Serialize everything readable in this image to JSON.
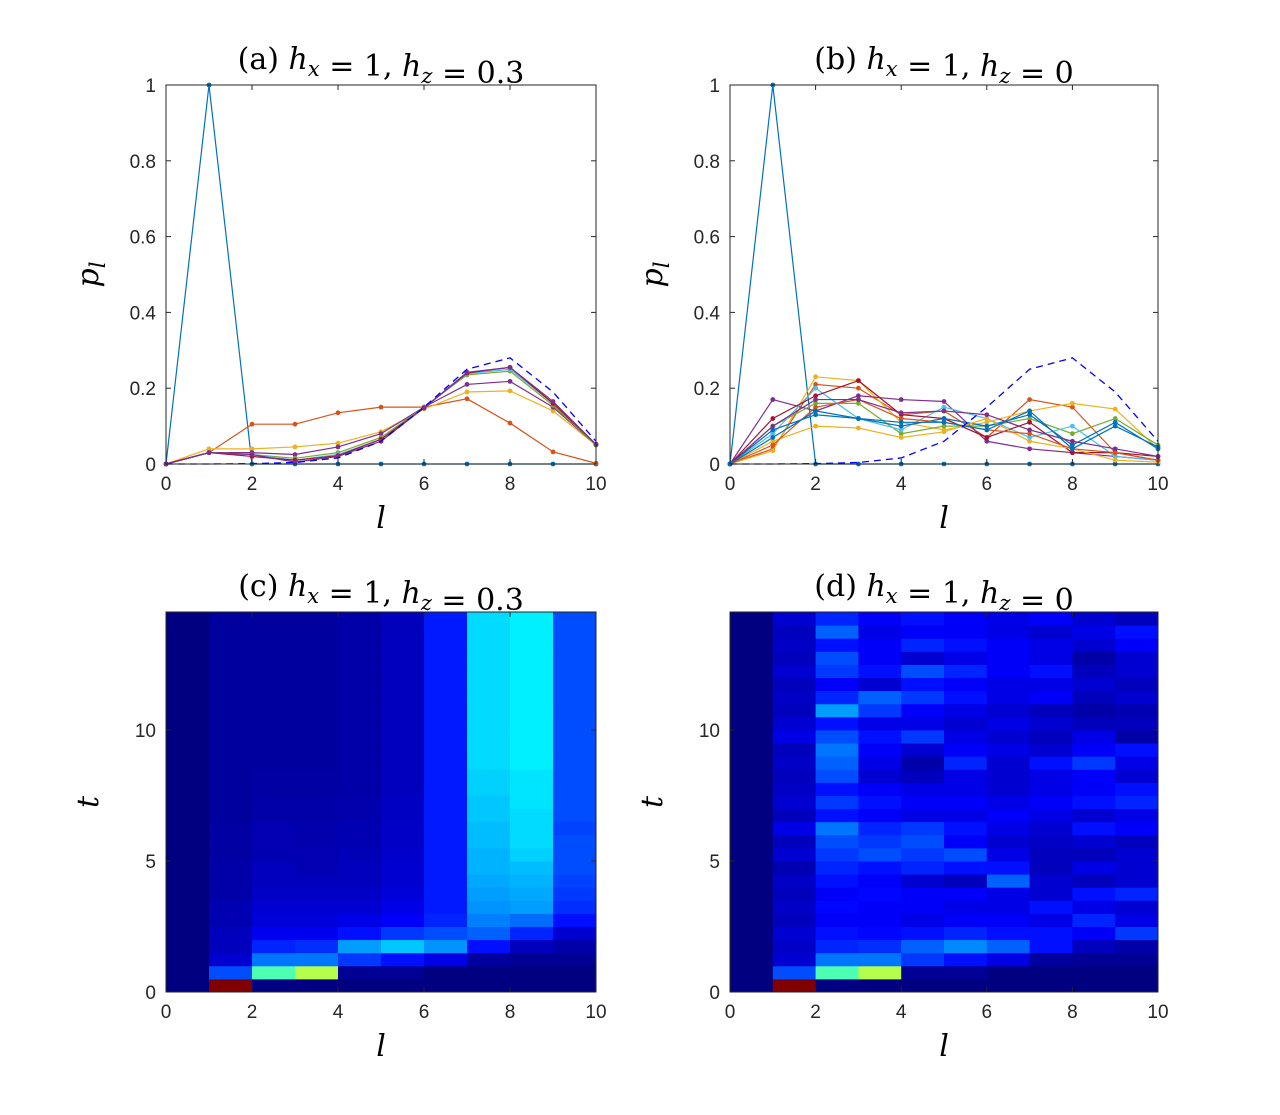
{
  "chart_data": [
    {
      "id": "a",
      "type": "line",
      "title": "(a) h_x = 1, h_z = 0.3",
      "title_parts": {
        "prefix": "(a) ",
        "a": "h",
        "a_sub": "x",
        "mid": " = 1, ",
        "b": "h",
        "b_sub": "z",
        "suffix": " = 0.3"
      },
      "xlabel": "l",
      "ylabel": "p_l",
      "ylabel_parts": {
        "base": "p",
        "sub": "l"
      },
      "xlim": [
        0,
        10
      ],
      "ylim": [
        0,
        1
      ],
      "xticks": [
        "0",
        "2",
        "4",
        "6",
        "8",
        "10"
      ],
      "yticks": [
        "0",
        "0.2",
        "0.4",
        "0.6",
        "0.8",
        "1"
      ],
      "x": [
        0,
        1,
        2,
        3,
        4,
        5,
        6,
        7,
        8,
        9,
        10
      ],
      "dashed_reference": {
        "color": "#0000ff",
        "values": [
          0,
          0,
          0.001,
          0.004,
          0.016,
          0.06,
          0.15,
          0.25,
          0.28,
          0.19,
          0.06
        ]
      },
      "series": [
        {
          "color": "#0072bd",
          "values": [
            0,
            1,
            0,
            0,
            0,
            0,
            0,
            0,
            0,
            0,
            0
          ]
        },
        {
          "color": "#d95319",
          "values": [
            0,
            0.03,
            0.105,
            0.105,
            0.135,
            0.15,
            0.15,
            0.172,
            0.108,
            0.032,
            0.002
          ]
        },
        {
          "color": "#edb120",
          "values": [
            0,
            0.04,
            0.04,
            0.045,
            0.055,
            0.085,
            0.145,
            0.19,
            0.193,
            0.14,
            0.05
          ]
        },
        {
          "color": "#7e2f8e",
          "values": [
            0,
            0.03,
            0.03,
            0.025,
            0.045,
            0.08,
            0.15,
            0.21,
            0.218,
            0.15,
            0.05
          ]
        },
        {
          "color": "#77ac30",
          "values": [
            0,
            0.03,
            0.025,
            0.015,
            0.03,
            0.07,
            0.15,
            0.235,
            0.245,
            0.155,
            0.05
          ]
        },
        {
          "color": "#4dbeee",
          "values": [
            0,
            0.03,
            0.025,
            0.01,
            0.025,
            0.065,
            0.148,
            0.238,
            0.25,
            0.16,
            0.052
          ]
        },
        {
          "color": "#a2142f",
          "values": [
            0,
            0.03,
            0.02,
            0.01,
            0.022,
            0.065,
            0.148,
            0.24,
            0.255,
            0.16,
            0.052
          ]
        },
        {
          "color": "#7e2f8e",
          "values": [
            0,
            0.03,
            0.025,
            0.005,
            0.02,
            0.06,
            0.148,
            0.242,
            0.255,
            0.165,
            0.052
          ]
        }
      ]
    },
    {
      "id": "b",
      "type": "line",
      "title": "(b) h_x = 1, h_z = 0",
      "title_parts": {
        "prefix": "(b) ",
        "a": "h",
        "a_sub": "x",
        "mid": " = 1, ",
        "b": "h",
        "b_sub": "z",
        "suffix": " = 0"
      },
      "xlabel": "l",
      "ylabel": "p_l",
      "ylabel_parts": {
        "base": "p",
        "sub": "l"
      },
      "xlim": [
        0,
        10
      ],
      "ylim": [
        0,
        1
      ],
      "xticks": [
        "0",
        "2",
        "4",
        "6",
        "8",
        "10"
      ],
      "yticks": [
        "0",
        "0.2",
        "0.4",
        "0.6",
        "0.8",
        "1"
      ],
      "x": [
        0,
        1,
        2,
        3,
        4,
        5,
        6,
        7,
        8,
        9,
        10
      ],
      "dashed_reference": {
        "color": "#0000ff",
        "values": [
          0,
          0,
          0.001,
          0.004,
          0.016,
          0.06,
          0.15,
          0.25,
          0.28,
          0.19,
          0.06
        ]
      },
      "series": [
        {
          "color": "#0072bd",
          "values": [
            0,
            1,
            0,
            0,
            0,
            0,
            0,
            0,
            0,
            0,
            0
          ]
        },
        {
          "color": "#d95319",
          "values": [
            0,
            0.04,
            0.21,
            0.2,
            0.13,
            0.14,
            0.07,
            0.17,
            0.15,
            0.03,
            0.01
          ]
        },
        {
          "color": "#edb120",
          "values": [
            0,
            0.035,
            0.23,
            0.22,
            0.11,
            0.09,
            0.11,
            0.14,
            0.16,
            0.145,
            0.04
          ]
        },
        {
          "color": "#7e2f8e",
          "values": [
            0,
            0.17,
            0.14,
            0.18,
            0.17,
            0.165,
            0.06,
            0.04,
            0.03,
            0.02,
            0.01
          ]
        },
        {
          "color": "#77ac30",
          "values": [
            0,
            0.1,
            0.16,
            0.16,
            0.08,
            0.1,
            0.1,
            0.12,
            0.08,
            0.12,
            0.05
          ]
        },
        {
          "color": "#4dbeee",
          "values": [
            0,
            0.08,
            0.2,
            0.12,
            0.09,
            0.15,
            0.12,
            0.07,
            0.1,
            0.02,
            0.01
          ]
        },
        {
          "color": "#a2142f",
          "values": [
            0,
            0.12,
            0.18,
            0.22,
            0.13,
            0.12,
            0.07,
            0.11,
            0.03,
            0.03,
            0.02
          ]
        },
        {
          "color": "#0072bd",
          "values": [
            0,
            0.09,
            0.13,
            0.12,
            0.1,
            0.12,
            0.1,
            0.13,
            0.05,
            0.11,
            0.04
          ]
        },
        {
          "color": "#edb120",
          "values": [
            0,
            0.06,
            0.1,
            0.095,
            0.07,
            0.085,
            0.12,
            0.06,
            0.04,
            0.01,
            0.005
          ]
        },
        {
          "color": "#d95319",
          "values": [
            0,
            0.05,
            0.15,
            0.17,
            0.12,
            0.11,
            0.09,
            0.08,
            0.04,
            0.03,
            0.01
          ]
        },
        {
          "color": "#7e2f8e",
          "values": [
            0,
            0.1,
            0.17,
            0.17,
            0.135,
            0.14,
            0.13,
            0.09,
            0.06,
            0.04,
            0.02
          ]
        },
        {
          "color": "#0072bd",
          "values": [
            0,
            0.07,
            0.14,
            0.12,
            0.11,
            0.11,
            0.09,
            0.14,
            0.04,
            0.1,
            0.045
          ]
        }
      ]
    },
    {
      "id": "c",
      "type": "heatmap",
      "title": "(c) h_x = 1, h_z = 0.3",
      "title_parts": {
        "prefix": "(c) ",
        "a": "h",
        "a_sub": "x",
        "mid": " = 1, ",
        "b": "h",
        "b_sub": "z",
        "suffix": " = 0.3"
      },
      "xlabel": "l",
      "ylabel": "t",
      "xlim": [
        0,
        10
      ],
      "ylim": [
        0,
        14.5
      ],
      "xticks": [
        "0",
        "2",
        "4",
        "6",
        "8",
        "10"
      ],
      "yticks": [
        "0",
        "5",
        "10"
      ],
      "colormap": "jet",
      "value_range": [
        0,
        1
      ],
      "t_step": 0.5,
      "rows": [
        [
          0,
          1,
          0,
          0,
          0,
          0,
          0,
          0,
          0,
          0
        ],
        [
          0,
          0.2,
          0.45,
          0.55,
          0.02,
          0.02,
          0,
          0,
          0,
          0
        ],
        [
          0,
          0.08,
          0.24,
          0.24,
          0.18,
          0.14,
          0.1,
          0.03,
          0.02,
          0.02
        ],
        [
          0,
          0.06,
          0.16,
          0.17,
          0.28,
          0.32,
          0.27,
          0.14,
          0.06,
          0.04
        ],
        [
          0,
          0.06,
          0.11,
          0.11,
          0.14,
          0.18,
          0.2,
          0.22,
          0.16,
          0.08
        ],
        [
          0,
          0.05,
          0.09,
          0.09,
          0.1,
          0.12,
          0.16,
          0.25,
          0.23,
          0.14
        ],
        [
          0,
          0.05,
          0.08,
          0.08,
          0.08,
          0.1,
          0.15,
          0.27,
          0.28,
          0.17
        ],
        [
          0,
          0.04,
          0.07,
          0.07,
          0.07,
          0.09,
          0.15,
          0.28,
          0.29,
          0.18
        ],
        [
          0,
          0.04,
          0.06,
          0.06,
          0.06,
          0.08,
          0.15,
          0.29,
          0.3,
          0.19
        ],
        [
          0,
          0.04,
          0.06,
          0.05,
          0.06,
          0.08,
          0.15,
          0.3,
          0.31,
          0.2
        ],
        [
          0,
          0.035,
          0.05,
          0.05,
          0.055,
          0.075,
          0.15,
          0.3,
          0.33,
          0.2
        ],
        [
          0,
          0.035,
          0.05,
          0.045,
          0.05,
          0.07,
          0.15,
          0.31,
          0.34,
          0.2
        ],
        [
          0,
          0.035,
          0.05,
          0.045,
          0.05,
          0.07,
          0.15,
          0.31,
          0.34,
          0.19
        ],
        [
          0,
          0.03,
          0.04,
          0.04,
          0.045,
          0.065,
          0.15,
          0.32,
          0.34,
          0.2
        ],
        [
          0,
          0.03,
          0.04,
          0.04,
          0.045,
          0.065,
          0.15,
          0.32,
          0.35,
          0.2
        ],
        [
          0,
          0.03,
          0.035,
          0.035,
          0.04,
          0.06,
          0.15,
          0.33,
          0.35,
          0.2
        ],
        [
          0,
          0.03,
          0.035,
          0.035,
          0.04,
          0.06,
          0.15,
          0.33,
          0.35,
          0.2
        ],
        [
          0,
          0.03,
          0.03,
          0.03,
          0.04,
          0.06,
          0.15,
          0.34,
          0.36,
          0.2
        ],
        [
          0,
          0.03,
          0.03,
          0.03,
          0.04,
          0.06,
          0.15,
          0.34,
          0.36,
          0.2
        ],
        [
          0,
          0.03,
          0.03,
          0.03,
          0.04,
          0.06,
          0.15,
          0.34,
          0.36,
          0.2
        ],
        [
          0,
          0.03,
          0.03,
          0.03,
          0.04,
          0.06,
          0.15,
          0.34,
          0.36,
          0.2
        ],
        [
          0,
          0.03,
          0.03,
          0.03,
          0.04,
          0.06,
          0.15,
          0.34,
          0.36,
          0.2
        ],
        [
          0,
          0.03,
          0.03,
          0.03,
          0.04,
          0.06,
          0.15,
          0.34,
          0.36,
          0.2
        ],
        [
          0,
          0.03,
          0.03,
          0.03,
          0.04,
          0.06,
          0.15,
          0.34,
          0.36,
          0.2
        ],
        [
          0,
          0.03,
          0.03,
          0.03,
          0.04,
          0.06,
          0.15,
          0.34,
          0.36,
          0.2
        ],
        [
          0,
          0.03,
          0.03,
          0.03,
          0.04,
          0.06,
          0.15,
          0.34,
          0.36,
          0.2
        ],
        [
          0,
          0.03,
          0.03,
          0.03,
          0.04,
          0.06,
          0.15,
          0.34,
          0.36,
          0.2
        ],
        [
          0,
          0.03,
          0.03,
          0.03,
          0.04,
          0.06,
          0.15,
          0.34,
          0.36,
          0.2
        ],
        [
          0,
          0.03,
          0.03,
          0.03,
          0.04,
          0.06,
          0.15,
          0.34,
          0.36,
          0.2
        ]
      ]
    },
    {
      "id": "d",
      "type": "heatmap",
      "title": "(d) h_x = 1, h_z = 0",
      "title_parts": {
        "prefix": "(d) ",
        "a": "h",
        "a_sub": "x",
        "mid": " = 1, ",
        "b": "h",
        "b_sub": "z",
        "suffix": " = 0"
      },
      "xlabel": "l",
      "ylabel": "t",
      "xlim": [
        0,
        10
      ],
      "ylim": [
        0,
        14.5
      ],
      "xticks": [
        "0",
        "2",
        "4",
        "6",
        "8",
        "10"
      ],
      "yticks": [
        "0",
        "5",
        "10"
      ],
      "colormap": "jet",
      "value_range": [
        0,
        1
      ],
      "t_step": 0.5,
      "rows": [
        [
          0,
          1,
          0,
          0,
          0,
          0,
          0,
          0,
          0,
          0
        ],
        [
          0,
          0.2,
          0.45,
          0.55,
          0.02,
          0.02,
          0,
          0,
          0,
          0
        ],
        [
          0,
          0.08,
          0.24,
          0.24,
          0.18,
          0.14,
          0.1,
          0.03,
          0.02,
          0.02
        ],
        [
          0,
          0.07,
          0.16,
          0.17,
          0.22,
          0.26,
          0.22,
          0.14,
          0.06,
          0.04
        ],
        [
          0,
          0.08,
          0.14,
          0.13,
          0.14,
          0.16,
          0.14,
          0.14,
          0.12,
          0.18
        ],
        [
          0,
          0.06,
          0.12,
          0.12,
          0.1,
          0.12,
          0.12,
          0.1,
          0.16,
          0.1
        ],
        [
          0,
          0.07,
          0.13,
          0.12,
          0.12,
          0.1,
          0.1,
          0.14,
          0.1,
          0.08
        ],
        [
          0,
          0.06,
          0.12,
          0.13,
          0.12,
          0.12,
          0.1,
          0.08,
          0.14,
          0.16
        ],
        [
          0,
          0.07,
          0.14,
          0.12,
          0.08,
          0.06,
          0.22,
          0.08,
          0.06,
          0.08
        ],
        [
          0,
          0.05,
          0.16,
          0.14,
          0.16,
          0.14,
          0.14,
          0.06,
          0.1,
          0.08
        ],
        [
          0,
          0.08,
          0.18,
          0.2,
          0.18,
          0.2,
          0.1,
          0.06,
          0.06,
          0.08
        ],
        [
          0,
          0.06,
          0.2,
          0.18,
          0.2,
          0.12,
          0.08,
          0.07,
          0.08,
          0.06
        ],
        [
          0,
          0.1,
          0.24,
          0.16,
          0.18,
          0.14,
          0.1,
          0.08,
          0.14,
          0.12
        ],
        [
          0,
          0.06,
          0.14,
          0.12,
          0.1,
          0.1,
          0.12,
          0.1,
          0.08,
          0.1
        ],
        [
          0,
          0.08,
          0.18,
          0.14,
          0.12,
          0.12,
          0.1,
          0.12,
          0.14,
          0.16
        ],
        [
          0,
          0.07,
          0.14,
          0.12,
          0.1,
          0.1,
          0.08,
          0.1,
          0.12,
          0.14
        ],
        [
          0,
          0.06,
          0.2,
          0.08,
          0.06,
          0.1,
          0.08,
          0.1,
          0.12,
          0.08
        ],
        [
          0,
          0.07,
          0.22,
          0.1,
          0.04,
          0.16,
          0.08,
          0.14,
          0.18,
          0.1
        ],
        [
          0,
          0.06,
          0.24,
          0.12,
          0.08,
          0.12,
          0.1,
          0.08,
          0.12,
          0.14
        ],
        [
          0,
          0.1,
          0.2,
          0.14,
          0.18,
          0.1,
          0.08,
          0.06,
          0.1,
          0.04
        ],
        [
          0,
          0.08,
          0.14,
          0.1,
          0.1,
          0.08,
          0.1,
          0.08,
          0.06,
          0.06
        ],
        [
          0,
          0.06,
          0.28,
          0.18,
          0.12,
          0.1,
          0.08,
          0.06,
          0.04,
          0.05
        ],
        [
          0,
          0.07,
          0.16,
          0.22,
          0.18,
          0.14,
          0.1,
          0.12,
          0.06,
          0.08
        ],
        [
          0,
          0.06,
          0.12,
          0.08,
          0.14,
          0.12,
          0.1,
          0.1,
          0.08,
          0.06
        ],
        [
          0,
          0.08,
          0.18,
          0.14,
          0.2,
          0.16,
          0.12,
          0.14,
          0.06,
          0.08
        ],
        [
          0,
          0.06,
          0.2,
          0.12,
          0.08,
          0.1,
          0.12,
          0.1,
          0.04,
          0.08
        ],
        [
          0,
          0.07,
          0.14,
          0.12,
          0.16,
          0.14,
          0.12,
          0.1,
          0.08,
          0.12
        ],
        [
          0,
          0.06,
          0.22,
          0.1,
          0.12,
          0.12,
          0.1,
          0.08,
          0.1,
          0.14
        ],
        [
          0,
          0.08,
          0.16,
          0.12,
          0.14,
          0.12,
          0.1,
          0.12,
          0.08,
          0.06
        ]
      ]
    }
  ]
}
